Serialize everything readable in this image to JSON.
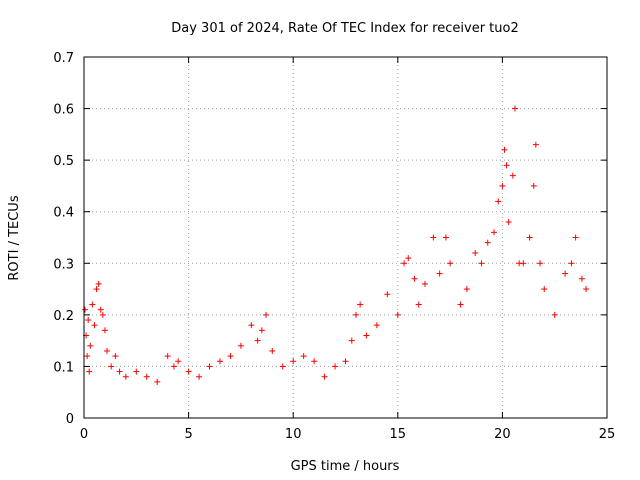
{
  "chart_data": {
    "type": "scatter",
    "title": "Day 301 of 2024, Rate Of TEC Index for receiver tuo2",
    "xlabel": "GPS time / hours",
    "ylabel": "ROTI / TECUs",
    "xlim": [
      0,
      25
    ],
    "ylim": [
      0,
      0.7
    ],
    "x_ticks": [
      0,
      5,
      10,
      15,
      20,
      25
    ],
    "y_ticks": [
      0,
      0.1,
      0.2,
      0.3,
      0.4,
      0.5,
      0.6,
      0.7
    ],
    "x_tick_labels": [
      "0",
      "5",
      "10",
      "15",
      "20",
      "25"
    ],
    "y_tick_labels": [
      "0",
      "0.1",
      "0.2",
      "0.3",
      "0.4",
      "0.5",
      "0.6",
      "0.7"
    ],
    "grid": true,
    "marker": "+",
    "marker_color": "#ff0000",
    "series": [
      {
        "name": "ROTI",
        "points": [
          [
            0.05,
            0.21
          ],
          [
            0.1,
            0.16
          ],
          [
            0.15,
            0.12
          ],
          [
            0.2,
            0.19
          ],
          [
            0.25,
            0.09
          ],
          [
            0.3,
            0.14
          ],
          [
            0.4,
            0.22
          ],
          [
            0.5,
            0.18
          ],
          [
            0.6,
            0.25
          ],
          [
            0.7,
            0.26
          ],
          [
            0.8,
            0.21
          ],
          [
            0.9,
            0.2
          ],
          [
            1.0,
            0.17
          ],
          [
            1.1,
            0.13
          ],
          [
            1.3,
            0.1
          ],
          [
            1.5,
            0.12
          ],
          [
            1.7,
            0.09
          ],
          [
            2.0,
            0.08
          ],
          [
            2.5,
            0.09
          ],
          [
            3.0,
            0.08
          ],
          [
            3.5,
            0.07
          ],
          [
            4.0,
            0.12
          ],
          [
            4.3,
            0.1
          ],
          [
            4.5,
            0.11
          ],
          [
            5.0,
            0.09
          ],
          [
            5.5,
            0.08
          ],
          [
            6.0,
            0.1
          ],
          [
            6.5,
            0.11
          ],
          [
            7.0,
            0.12
          ],
          [
            7.5,
            0.14
          ],
          [
            8.0,
            0.18
          ],
          [
            8.3,
            0.15
          ],
          [
            8.5,
            0.17
          ],
          [
            8.7,
            0.2
          ],
          [
            9.0,
            0.13
          ],
          [
            9.5,
            0.1
          ],
          [
            10.0,
            0.11
          ],
          [
            10.5,
            0.12
          ],
          [
            11.0,
            0.11
          ],
          [
            11.5,
            0.08
          ],
          [
            12.0,
            0.1
          ],
          [
            12.5,
            0.11
          ],
          [
            12.8,
            0.15
          ],
          [
            13.0,
            0.2
          ],
          [
            13.2,
            0.22
          ],
          [
            13.5,
            0.16
          ],
          [
            14.0,
            0.18
          ],
          [
            14.5,
            0.24
          ],
          [
            15.0,
            0.2
          ],
          [
            15.3,
            0.3
          ],
          [
            15.5,
            0.31
          ],
          [
            15.8,
            0.27
          ],
          [
            16.0,
            0.22
          ],
          [
            16.3,
            0.26
          ],
          [
            16.7,
            0.35
          ],
          [
            17.0,
            0.28
          ],
          [
            17.3,
            0.35
          ],
          [
            17.5,
            0.3
          ],
          [
            18.0,
            0.22
          ],
          [
            18.3,
            0.25
          ],
          [
            18.7,
            0.32
          ],
          [
            19.0,
            0.3
          ],
          [
            19.3,
            0.34
          ],
          [
            19.6,
            0.36
          ],
          [
            19.8,
            0.42
          ],
          [
            20.0,
            0.45
          ],
          [
            20.1,
            0.52
          ],
          [
            20.2,
            0.49
          ],
          [
            20.3,
            0.38
          ],
          [
            20.5,
            0.47
          ],
          [
            20.6,
            0.6
          ],
          [
            20.8,
            0.3
          ],
          [
            21.0,
            0.3
          ],
          [
            21.3,
            0.35
          ],
          [
            21.5,
            0.45
          ],
          [
            21.6,
            0.53
          ],
          [
            21.8,
            0.3
          ],
          [
            22.0,
            0.25
          ],
          [
            22.5,
            0.2
          ],
          [
            23.0,
            0.28
          ],
          [
            23.3,
            0.3
          ],
          [
            23.5,
            0.35
          ],
          [
            23.8,
            0.27
          ],
          [
            24.0,
            0.25
          ]
        ]
      }
    ]
  }
}
